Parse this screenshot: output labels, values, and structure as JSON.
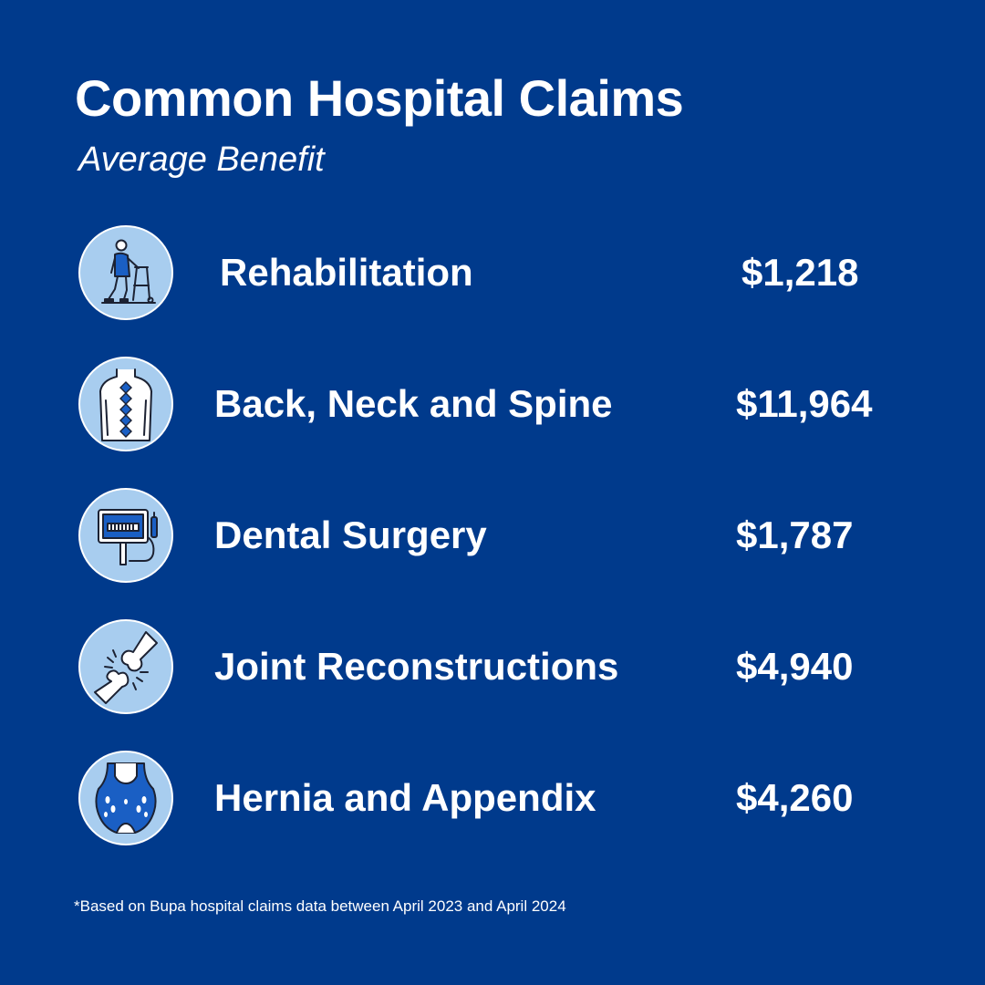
{
  "header": {
    "title": "Common Hospital Claims",
    "subtitle": "Average Benefit"
  },
  "claims": [
    {
      "label": "Rehabilitation",
      "value": "$1,218",
      "icon": "walker-person-icon"
    },
    {
      "label": "Back, Neck and Spine",
      "value": "$11,964",
      "icon": "spine-icon"
    },
    {
      "label": "Dental Surgery",
      "value": "$1,787",
      "icon": "dental-monitor-icon"
    },
    {
      "label": "Joint Reconstructions",
      "value": "$4,940",
      "icon": "joint-bone-icon"
    },
    {
      "label": "Hernia and Appendix",
      "value": "$4,260",
      "icon": "abdomen-icon"
    }
  ],
  "footnote": "*Based on Bupa hospital claims data between April 2023 and April 2024",
  "colors": {
    "background": "#003a8c",
    "text": "#ffffff",
    "icon_circle": "#a8cdef",
    "icon_accent": "#1a5fc4"
  }
}
